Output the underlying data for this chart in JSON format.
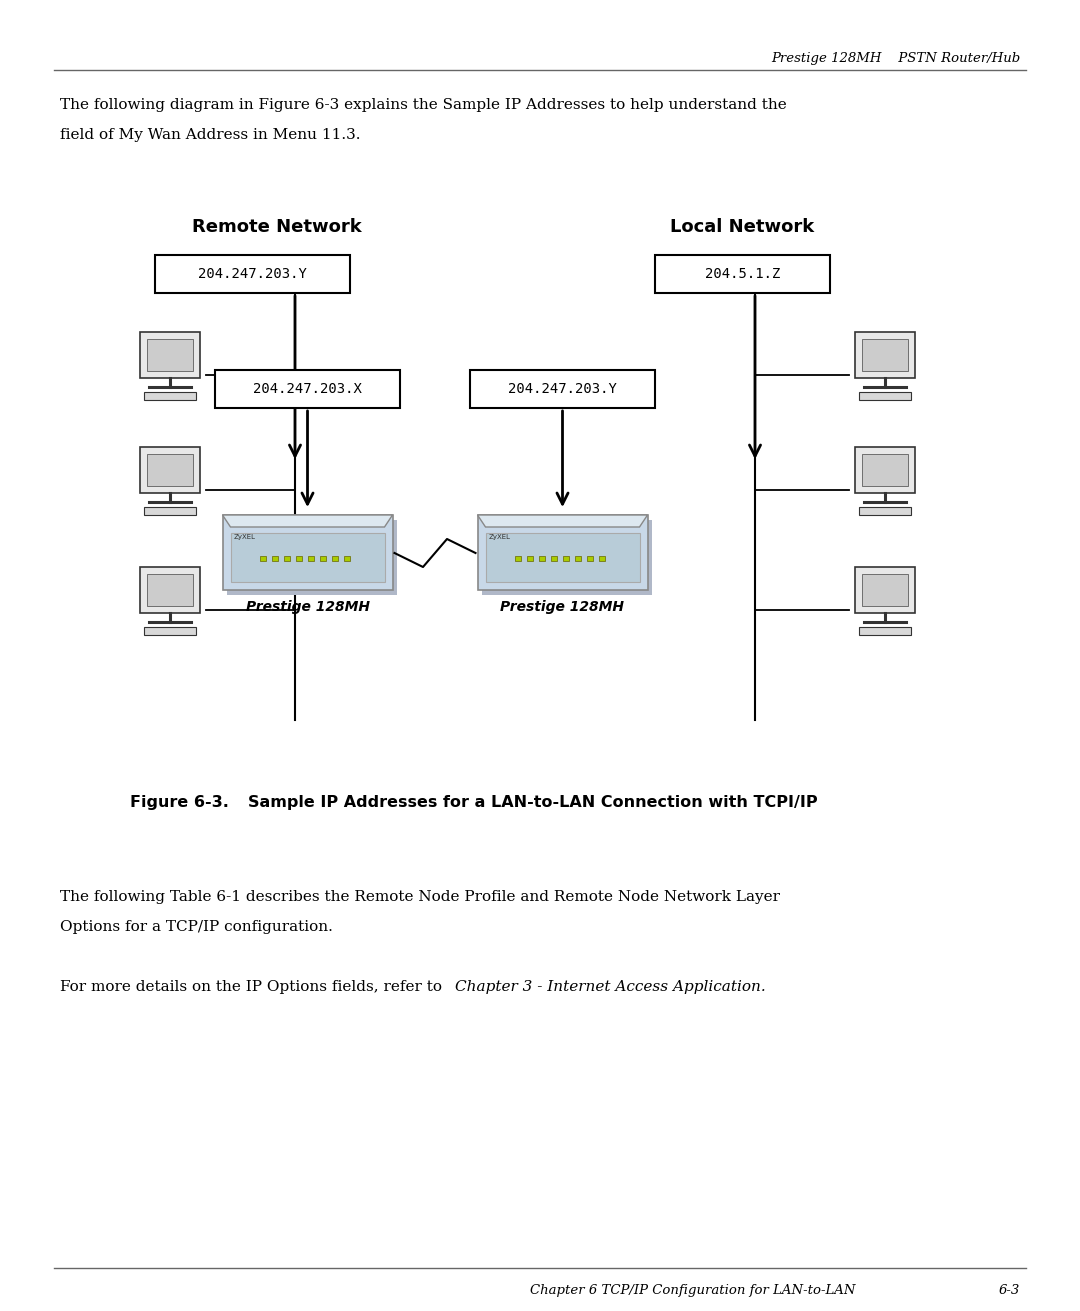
{
  "page_header": "Prestige 128MH    PSTN Router/Hub",
  "body_text1_line1": "The following diagram in Figure 6-3 explains the Sample IP Addresses to help understand the",
  "body_text1_line2": "field of My Wan Address in Menu 11.3.",
  "remote_network_label": "Remote Network",
  "local_network_label": "Local Network",
  "ip_remote_top": "204.247.203.Y",
  "ip_local_top": "204.5.1.Z",
  "ip_left_router": "204.247.203.X",
  "ip_right_router": "204.247.203.Y",
  "prestige_label": "Prestige 128MH",
  "figure_label": "Figure 6-3.",
  "figure_caption": "Sample IP Addresses for a LAN-to-LAN Connection with TCPI/IP",
  "body_text2_line1": "The following Table 6-1 describes the Remote Node Profile and Remote Node Network Layer",
  "body_text2_line2": "Options for a TCP/IP configuration.",
  "body_text3_normal": "For more details on the IP Options fields, refer to ",
  "body_text3_italic": "Chapter 3 - Internet Access Application.",
  "footer_text": "Chapter 6 TCP/IP Configuration for LAN-to-LAN",
  "footer_page": "6-3",
  "bg_color": "#ffffff",
  "text_color": "#000000"
}
